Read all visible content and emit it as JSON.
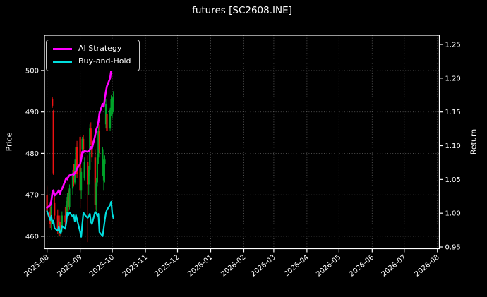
{
  "title": "futures [SC2608.INE]",
  "legend": [
    {
      "label": "AI Strategy",
      "color": "#ff00ff"
    },
    {
      "label": "Buy-and-Hold",
      "color": "#00dede"
    }
  ],
  "chart_data": {
    "type": "candlestick+line",
    "title": "futures [SC2608.INE]",
    "xlabel": "",
    "grid": true,
    "legend_position": "upper left",
    "x_axis": {
      "tick_labels": [
        "2025-08",
        "2025-09",
        "2025-10",
        "2025-11",
        "2025-12",
        "2026-01",
        "2026-02",
        "2026-03",
        "2026-04",
        "2026-05",
        "2026-06",
        "2026-07",
        "2026-08"
      ],
      "tick_day_offsets": [
        0,
        31,
        61,
        92,
        122,
        153,
        184,
        212,
        243,
        273,
        304,
        334,
        365
      ],
      "range_days": [
        -2.4,
        366.8
      ],
      "tick_rotation_deg": 40
    },
    "left_axis": {
      "label": "Price",
      "ticks": [
        460,
        470,
        480,
        490,
        500
      ],
      "range": [
        457.0,
        508.5
      ]
    },
    "right_axis": {
      "label": "Return",
      "ticks": [
        "0.95",
        "1.00",
        "1.05",
        "1.10",
        "1.15",
        "1.20",
        "1.25"
      ],
      "range": [
        0.9474,
        1.2636
      ]
    },
    "colors": {
      "background": "#000000",
      "text": "#ffffff",
      "grid": "#585858",
      "spine": "#ffffff",
      "candle_up": "#00a42a",
      "candle_down": "#ee1111",
      "ai_strategy": "#ff00ff",
      "buy_and_hold": "#00dede"
    },
    "candles_columns": [
      "date",
      "day_offset",
      "open",
      "high",
      "low",
      "close"
    ],
    "candles": [
      [
        "2025-08-01",
        0,
        470.0,
        472.0,
        464.5,
        466.0
      ],
      [
        "2025-08-04",
        3,
        466.0,
        467.5,
        462.0,
        463.0
      ],
      [
        "2025-08-05",
        4,
        463.5,
        468.0,
        461.5,
        467.0
      ],
      [
        "2025-08-06",
        5,
        493.0,
        493.5,
        491.0,
        491.5
      ],
      [
        "2025-08-07",
        6,
        490.3,
        490.5,
        474.8,
        475.2
      ],
      [
        "2025-08-08",
        7,
        468.0,
        469.5,
        464.0,
        465.0
      ],
      [
        "2025-08-11",
        10,
        465.0,
        466.5,
        460.5,
        461.5
      ],
      [
        "2025-08-12",
        11,
        461.5,
        464.5,
        459.8,
        463.5
      ],
      [
        "2025-08-13",
        12,
        463.5,
        465.0,
        460.0,
        461.0
      ],
      [
        "2025-08-14",
        13,
        461.0,
        463.0,
        459.9,
        462.0
      ],
      [
        "2025-08-15",
        14,
        462.0,
        466.0,
        461.0,
        465.0
      ],
      [
        "2025-08-18",
        17,
        465.0,
        467.0,
        462.5,
        463.5
      ],
      [
        "2025-08-19",
        18,
        463.5,
        468.5,
        463.0,
        467.5
      ],
      [
        "2025-08-20",
        19,
        467.5,
        470.5,
        465.5,
        469.5
      ],
      [
        "2025-08-21",
        20,
        469.5,
        471.0,
        466.0,
        467.0
      ],
      [
        "2025-08-22",
        21,
        467.0,
        472.5,
        466.5,
        471.5
      ],
      [
        "2025-08-25",
        24,
        471.5,
        476.0,
        470.0,
        475.0
      ],
      [
        "2025-08-26",
        25,
        475.0,
        477.5,
        472.0,
        473.0
      ],
      [
        "2025-08-27",
        26,
        473.0,
        478.5,
        472.5,
        477.5
      ],
      [
        "2025-08-28",
        27,
        477.5,
        482.5,
        476.0,
        481.5
      ],
      [
        "2025-08-29",
        28,
        481.5,
        483.0,
        474.0,
        475.0
      ],
      [
        "2025-09-01",
        31,
        484.0,
        484.5,
        466.8,
        471.0
      ],
      [
        "2025-09-02",
        32,
        471.0,
        476.5,
        469.0,
        475.5
      ],
      [
        "2025-09-03",
        33,
        481.0,
        484.0,
        479.5,
        483.5
      ],
      [
        "2025-09-04",
        34,
        483.5,
        484.5,
        480.5,
        481.0
      ],
      [
        "2025-09-05",
        35,
        474.0,
        479.0,
        473.5,
        478.0
      ],
      [
        "2025-09-08",
        38,
        478.0,
        479.5,
        458.6,
        472.5
      ],
      [
        "2025-09-09",
        39,
        472.5,
        477.0,
        470.0,
        476.0
      ],
      [
        "2025-09-10",
        40,
        476.0,
        487.0,
        474.5,
        486.0
      ],
      [
        "2025-09-11",
        41,
        486.0,
        487.5,
        482.0,
        483.0
      ],
      [
        "2025-09-12",
        42,
        483.0,
        485.5,
        478.0,
        479.0
      ],
      [
        "2025-09-15",
        45,
        479.0,
        481.0,
        466.5,
        467.5
      ],
      [
        "2025-09-16",
        46,
        467.5,
        474.0,
        466.0,
        473.0
      ],
      [
        "2025-09-17",
        47,
        473.0,
        480.0,
        472.0,
        479.0
      ],
      [
        "2025-09-18",
        48,
        479.0,
        486.5,
        477.5,
        485.5
      ],
      [
        "2025-09-19",
        49,
        485.5,
        487.0,
        480.0,
        481.0
      ],
      [
        "2025-09-22",
        52,
        477.0,
        481.5,
        474.5,
        481.0
      ],
      [
        "2025-09-23",
        53,
        473.5,
        478.5,
        471.0,
        477.5
      ],
      [
        "2025-09-24",
        54,
        477.5,
        479.5,
        473.0,
        478.5
      ],
      [
        "2025-09-25",
        55,
        487.0,
        493.0,
        486.0,
        492.0
      ],
      [
        "2025-09-26",
        56,
        489.5,
        490.0,
        485.0,
        485.5
      ],
      [
        "2025-09-29",
        59,
        486.0,
        491.0,
        485.5,
        490.5
      ],
      [
        "2025-09-30",
        60,
        490.5,
        494.0,
        489.0,
        493.0
      ],
      [
        "2025-10-01",
        61,
        489.5,
        493.5,
        488.5,
        492.5
      ],
      [
        "2025-10-02",
        62,
        492.5,
        495.0,
        490.0,
        493.5
      ]
    ],
    "series": [
      {
        "name": "AI Strategy",
        "axis": "right",
        "color": "#ff00ff",
        "points_format": [
          "day_offset",
          "return"
        ],
        "points": [
          [
            0,
            1.008
          ],
          [
            3,
            1.012
          ],
          [
            4,
            1.018
          ],
          [
            5,
            1.03
          ],
          [
            6,
            1.034
          ],
          [
            7,
            1.026
          ],
          [
            10,
            1.031
          ],
          [
            11,
            1.034
          ],
          [
            12,
            1.028
          ],
          [
            13,
            1.033
          ],
          [
            14,
            1.036
          ],
          [
            17,
            1.048
          ],
          [
            18,
            1.052
          ],
          [
            19,
            1.05
          ],
          [
            20,
            1.054
          ],
          [
            21,
            1.056
          ],
          [
            24,
            1.058
          ],
          [
            25,
            1.057
          ],
          [
            26,
            1.06
          ],
          [
            27,
            1.062
          ],
          [
            28,
            1.066
          ],
          [
            31,
            1.073
          ],
          [
            32,
            1.08
          ],
          [
            33,
            1.091
          ],
          [
            34,
            1.09
          ],
          [
            35,
            1.092
          ],
          [
            38,
            1.091
          ],
          [
            39,
            1.092
          ],
          [
            40,
            1.094
          ],
          [
            41,
            1.098
          ],
          [
            42,
            1.096
          ],
          [
            45,
            1.115
          ],
          [
            46,
            1.124
          ],
          [
            47,
            1.128
          ],
          [
            48,
            1.135
          ],
          [
            49,
            1.148
          ],
          [
            52,
            1.162
          ],
          [
            53,
            1.158
          ],
          [
            54,
            1.17
          ],
          [
            55,
            1.18
          ],
          [
            56,
            1.188
          ],
          [
            59,
            1.2
          ],
          [
            60,
            1.212
          ],
          [
            61,
            1.224
          ],
          [
            62,
            1.234
          ]
        ]
      },
      {
        "name": "Buy-and-Hold",
        "axis": "right",
        "color": "#00dede",
        "points_format": [
          "day_offset",
          "return"
        ],
        "points": [
          [
            0,
            1.003
          ],
          [
            3,
            0.99
          ],
          [
            4,
            0.996
          ],
          [
            5,
            0.985
          ],
          [
            6,
            0.989
          ],
          [
            7,
            0.978
          ],
          [
            10,
            0.974
          ],
          [
            11,
            0.98
          ],
          [
            12,
            0.972
          ],
          [
            13,
            0.971
          ],
          [
            14,
            0.981
          ],
          [
            17,
            0.977
          ],
          [
            18,
            0.986
          ],
          [
            19,
            1.001
          ],
          [
            20,
            0.997
          ],
          [
            21,
            1.001
          ],
          [
            24,
            0.995
          ],
          [
            25,
            0.997
          ],
          [
            26,
            0.988
          ],
          [
            27,
            0.997
          ],
          [
            28,
            0.991
          ],
          [
            31,
            0.972
          ],
          [
            32,
            0.965
          ],
          [
            33,
            0.984
          ],
          [
            34,
            1.001
          ],
          [
            35,
            0.998
          ],
          [
            38,
            0.993
          ],
          [
            39,
            0.995
          ],
          [
            40,
            0.999
          ],
          [
            41,
            0.987
          ],
          [
            42,
            0.984
          ],
          [
            45,
            1.002
          ],
          [
            46,
            1.0
          ],
          [
            47,
            0.996
          ],
          [
            48,
            0.999
          ],
          [
            49,
            0.972
          ],
          [
            52,
            0.966
          ],
          [
            53,
            0.978
          ],
          [
            54,
            0.99
          ],
          [
            55,
            1.0
          ],
          [
            56,
            1.005
          ],
          [
            59,
            1.012
          ],
          [
            60,
            1.017
          ],
          [
            61,
            0.999
          ],
          [
            62,
            0.993
          ]
        ]
      }
    ]
  }
}
